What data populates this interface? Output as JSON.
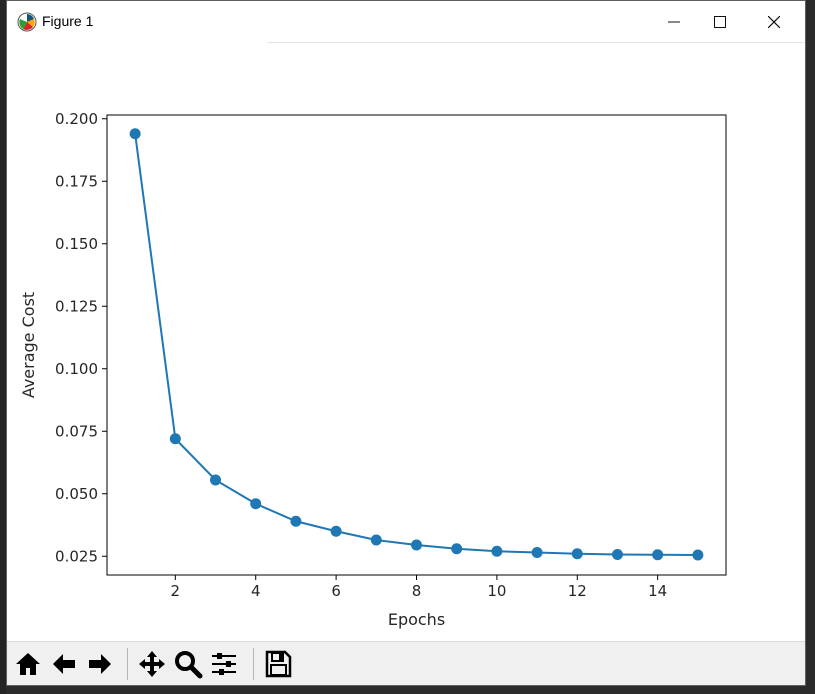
{
  "window": {
    "title": "Figure 1",
    "controls": {
      "minimize": "—",
      "maximize": "☐",
      "close": "✕"
    }
  },
  "toolbar": {
    "buttons": [
      {
        "name": "home",
        "icon": "home-icon"
      },
      {
        "name": "back",
        "icon": "arrow-left-icon"
      },
      {
        "name": "forward",
        "icon": "arrow-right-icon"
      },
      {
        "name": "pan",
        "icon": "move-icon"
      },
      {
        "name": "zoom",
        "icon": "magnifier-icon"
      },
      {
        "name": "configure-subplots",
        "icon": "sliders-icon"
      },
      {
        "name": "save",
        "icon": "floppy-disk-icon"
      }
    ]
  },
  "chart_data": {
    "type": "line",
    "title": "",
    "xlabel": "Epochs",
    "ylabel": "Average Cost",
    "x": [
      1,
      2,
      3,
      4,
      5,
      6,
      7,
      8,
      9,
      10,
      11,
      12,
      13,
      14,
      15
    ],
    "series": [
      {
        "values": [
          0.194,
          0.072,
          0.0555,
          0.046,
          0.039,
          0.035,
          0.0315,
          0.0295,
          0.028,
          0.027,
          0.0265,
          0.026,
          0.0257,
          0.0256,
          0.0255
        ],
        "color": "#1f77b4",
        "marker": "circle"
      }
    ],
    "xlim": [
      0.3,
      15.7
    ],
    "ylim": [
      0.0175,
      0.2015
    ],
    "xticks": [
      2,
      4,
      6,
      8,
      10,
      12,
      14
    ],
    "xtick_labels": [
      "2",
      "4",
      "6",
      "8",
      "10",
      "12",
      "14"
    ],
    "yticks": [
      0.025,
      0.05,
      0.075,
      0.1,
      0.125,
      0.15,
      0.175,
      0.2
    ],
    "ytick_labels": [
      "0.025",
      "0.050",
      "0.075",
      "0.100",
      "0.125",
      "0.150",
      "0.175",
      "0.200"
    ],
    "grid": false
  }
}
